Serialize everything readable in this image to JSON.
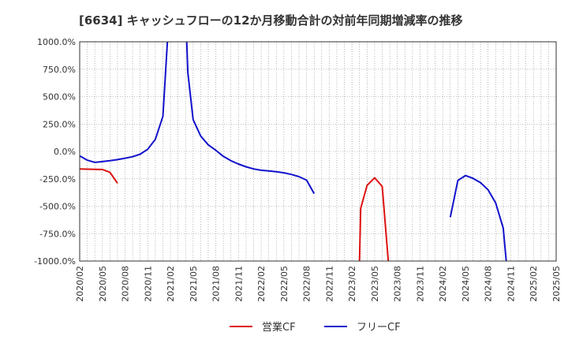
{
  "chart_data": {
    "type": "line",
    "title": "[6634]  キャッシュフローの12か月移動合計の対前年同期増減率の推移",
    "xlabel": "",
    "ylabel": "",
    "ylim": [
      -1000,
      1000
    ],
    "y_ticks": [
      1000,
      750,
      500,
      250,
      0,
      -250,
      -500,
      -750,
      -1000
    ],
    "y_tick_labels": [
      "1000.0%",
      "750.0%",
      "500.0%",
      "250.0%",
      "0.0%",
      "-250.0%",
      "-500.0%",
      "-750.0%",
      "-1000.0%"
    ],
    "x_tick_labels": [
      "2020/02",
      "2020/05",
      "2020/08",
      "2020/11",
      "2021/02",
      "2021/05",
      "2021/08",
      "2021/11",
      "2022/02",
      "2022/05",
      "2022/08",
      "2022/11",
      "2023/02",
      "2023/05",
      "2023/08",
      "2023/11",
      "2024/02",
      "2024/05",
      "2024/08",
      "2024/11",
      "2025/02",
      "2025/05"
    ],
    "grid": true,
    "series": [
      {
        "name": "営業CF",
        "color": "#dd1111",
        "segments": [
          [
            [
              0,
              -160
            ],
            [
              1,
              -162
            ],
            [
              2,
              -163
            ],
            [
              3,
              -165
            ],
            [
              4,
              -190
            ],
            [
              5,
              -290
            ]
          ],
          [
            [
              37,
              -1000
            ],
            [
              37.15,
              -520
            ],
            [
              38,
              -310
            ],
            [
              39,
              -240
            ],
            [
              40,
              -320
            ],
            [
              40.8,
              -1000
            ]
          ]
        ]
      },
      {
        "name": "フリーCF",
        "color": "#1111cc",
        "segments": [
          [
            [
              0,
              -40
            ],
            [
              1,
              -80
            ],
            [
              2,
              -100
            ],
            [
              3,
              -93
            ],
            [
              4,
              -85
            ],
            [
              5,
              -75
            ],
            [
              6,
              -62
            ],
            [
              7,
              -48
            ],
            [
              8,
              -25
            ],
            [
              9,
              20
            ],
            [
              10,
              110
            ],
            [
              11,
              320
            ],
            [
              11.6,
              1000
            ]
          ],
          [
            [
              14.15,
              1000
            ],
            [
              14.3,
              720
            ],
            [
              15,
              290
            ],
            [
              16,
              140
            ],
            [
              17,
              60
            ],
            [
              18,
              10
            ],
            [
              19,
              -45
            ],
            [
              20,
              -85
            ],
            [
              21,
              -115
            ],
            [
              22,
              -140
            ],
            [
              23,
              -160
            ],
            [
              24,
              -172
            ],
            [
              25,
              -178
            ],
            [
              26,
              -185
            ],
            [
              27,
              -195
            ],
            [
              28,
              -210
            ],
            [
              29,
              -230
            ],
            [
              30,
              -262
            ],
            [
              31,
              -385
            ]
          ],
          [
            [
              49,
              -600
            ],
            [
              50,
              -265
            ],
            [
              51,
              -220
            ],
            [
              52,
              -245
            ],
            [
              53,
              -285
            ],
            [
              54,
              -350
            ],
            [
              55,
              -470
            ],
            [
              56,
              -700
            ],
            [
              56.4,
              -1000
            ]
          ]
        ]
      }
    ],
    "legend": {
      "position": "bottom-center"
    }
  }
}
